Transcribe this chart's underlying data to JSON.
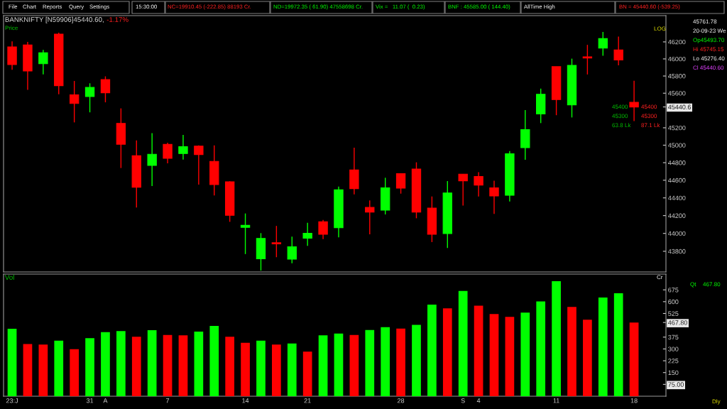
{
  "chart_data": [
    {
      "type": "candlestick",
      "title": "BANKNIFTY [N59906]45440.60,",
      "subtitle": "-1.17%",
      "log": true,
      "tick_labels": "y",
      "categories": [
        null,
        null,
        null,
        null,
        null,
        null,
        null,
        null,
        null,
        null,
        null,
        null,
        null,
        null,
        null,
        null,
        null,
        null,
        null,
        null,
        null,
        null,
        null,
        null,
        null,
        null,
        null,
        null,
        null,
        null,
        null,
        null,
        null,
        null,
        null,
        null,
        null,
        null,
        null,
        null,
        null
      ],
      "ohlc": [
        [
          46141,
          46206,
          45872,
          45934
        ],
        [
          46163,
          46200,
          45640,
          45858
        ],
        [
          45944,
          46106,
          45818,
          46071
        ],
        [
          46292,
          46308,
          45588,
          45688
        ],
        [
          45580,
          45742,
          45262,
          45481
        ],
        [
          45561,
          45715,
          45378,
          45667
        ],
        [
          45758,
          45796,
          45494,
          45605
        ],
        [
          45251,
          45424,
          44739,
          45011
        ],
        [
          44879,
          45055,
          44292,
          44521
        ],
        [
          44769,
          45138,
          44534,
          44896
        ],
        [
          45009,
          45028,
          44793,
          44850
        ],
        [
          44904,
          45117,
          44836,
          44982
        ],
        [
          44990,
          44998,
          44551,
          44893
        ],
        [
          44815,
          44998,
          44427,
          44551
        ],
        [
          44583,
          44588,
          44130,
          44203
        ],
        [
          44068,
          44224,
          43769,
          44090
        ],
        [
          43717,
          44003,
          43585,
          43944
        ],
        [
          43895,
          44084,
          43734,
          43882
        ],
        [
          43712,
          43963,
          43666,
          43850
        ],
        [
          43947,
          44119,
          43860,
          44001
        ],
        [
          44130,
          44151,
          43936,
          43990
        ],
        [
          44063,
          44529,
          43955,
          44491
        ],
        [
          44718,
          44971,
          44440,
          44505
        ],
        [
          44292,
          44372,
          43990,
          44240
        ],
        [
          44262,
          44628,
          44213,
          44513
        ],
        [
          44674,
          44680,
          44448,
          44510
        ],
        [
          44728,
          44804,
          44170,
          44240
        ],
        [
          44284,
          44416,
          43903,
          43990
        ],
        [
          43998,
          44591,
          43836,
          44456
        ],
        [
          44669,
          44669,
          44313,
          44594
        ],
        [
          44642,
          44691,
          44416,
          44545
        ],
        [
          44513,
          44594,
          44219,
          44421
        ],
        [
          44429,
          44933,
          44359,
          44901
        ],
        [
          44971,
          45405,
          44833,
          45178
        ],
        [
          45359,
          45653,
          45254,
          45588
        ],
        [
          45909,
          45909,
          45345,
          45526
        ],
        [
          45464,
          46003,
          45319,
          45925
        ],
        [
          46025,
          46165,
          45818,
          46011
        ],
        [
          46128,
          46316,
          46038,
          46238
        ],
        [
          46106,
          46262,
          45925,
          45987
        ],
        [
          45493.7,
          45745.15,
          45276.4,
          45440.6
        ]
      ],
      "colors": [
        "#ff0000",
        "#ff0000",
        "#00ff00",
        "#ff0000",
        "#ff0000",
        "#00ff00",
        "#ff0000",
        "#ff0000",
        "#ff0000",
        "#00ff00",
        "#ff0000",
        "#00ff00",
        "#ff0000",
        "#ff0000",
        "#ff0000",
        "#00ff00",
        "#00ff00",
        "#ff0000",
        "#00ff00",
        "#00ff00",
        "#ff0000",
        "#00ff00",
        "#ff0000",
        "#ff0000",
        "#00ff00",
        "#ff0000",
        "#ff0000",
        "#ff0000",
        "#00ff00",
        "#ff0000",
        "#ff0000",
        "#ff0000",
        "#00ff00",
        "#00ff00",
        "#00ff00",
        "#ff0000",
        "#00ff00",
        "#ff0000",
        "#00ff00",
        "#ff0000",
        "#ff0000"
      ],
      "ylim": [
        43570,
        46510
      ],
      "yticks": [
        43800,
        44000,
        44200,
        44400,
        44600,
        44800,
        45000,
        45200,
        {
          "value": 45440.6,
          "label": "45440.6"
        },
        45600,
        45800,
        46000,
        46200
      ],
      "annotations": [
        "File",
        "Chart",
        "Reports",
        "Query",
        "Settings",
        "15:30:00",
        "NC=19910.45 (-222.85) 88193 Cr.",
        "ND=19972.35 ( 61.90) 47558698 Cr.",
        "Vix =   11.07 (  0.23)",
        "BNF : 45585.00 ( 144.40)",
        "AllTime High",
        "BN = 45440.60 (-539.25)",
        "45761.78",
        "20-09-23 We",
        "Op45493.70",
        "Hi 45745.15",
        "Lo 45276.40",
        "Cl 45440.60",
        "Price",
        "LOG",
        "45400",
        "45400",
        "45300",
        "45300",
        "63.8 Lk",
        "87.1 Lk",
        "Cr",
        "Qt",
        "467.80",
        "Dly"
      ]
    },
    {
      "type": "bar",
      "title": "Vol",
      "categories": [
        "23:J",
        null,
        null,
        null,
        null,
        "31",
        "A",
        null,
        null,
        null,
        "7",
        null,
        null,
        null,
        null,
        "14",
        null,
        null,
        null,
        "21",
        null,
        null,
        null,
        null,
        null,
        "28",
        null,
        null,
        null,
        "S",
        "4",
        null,
        null,
        null,
        null,
        "11",
        null,
        null,
        null,
        null,
        "18"
      ],
      "values": [
        428,
        331,
        328,
        353,
        298,
        368,
        407,
        413,
        377,
        419,
        389,
        386,
        410,
        446,
        377,
        339,
        353,
        328,
        335,
        283,
        386,
        398,
        389,
        420,
        438,
        429,
        453,
        581,
        558,
        668,
        574,
        522,
        504,
        531,
        601,
        730,
        567,
        486,
        626,
        653,
        467.8
      ],
      "colors": [
        "#00ff00",
        "#ff0000",
        "#ff0000",
        "#00ff00",
        "#ff0000",
        "#00ff00",
        "#00ff00",
        "#00ff00",
        "#ff0000",
        "#00ff00",
        "#ff0000",
        "#ff0000",
        "#00ff00",
        "#00ff00",
        "#ff0000",
        "#ff0000",
        "#00ff00",
        "#ff0000",
        "#00ff00",
        "#ff0000",
        "#00ff00",
        "#00ff00",
        "#ff0000",
        "#00ff00",
        "#00ff00",
        "#ff0000",
        "#00ff00",
        "#00ff00",
        "#ff0000",
        "#00ff00",
        "#ff0000",
        "#ff0000",
        "#ff0000",
        "#00ff00",
        "#00ff00",
        "#00ff00",
        "#ff0000",
        "#ff0000",
        "#00ff00",
        "#00ff00",
        "#ff0000"
      ],
      "ylim": [
        0,
        775
      ],
      "yticks": [
        {
          "value": 75,
          "label": "75.00"
        },
        150,
        225,
        300,
        375,
        {
          "value": 467.8,
          "label": "467.80"
        },
        525,
        600,
        675
      ]
    }
  ]
}
